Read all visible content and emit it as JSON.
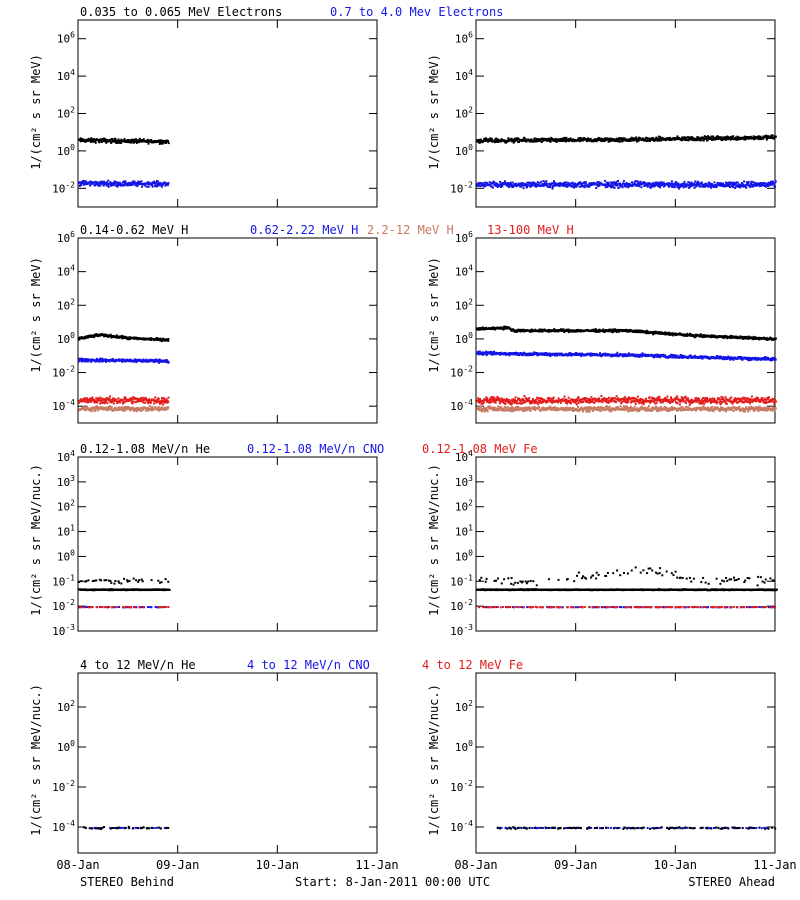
{
  "colors": {
    "black": "#000000",
    "blue": "#1515e6",
    "salmon": "#c87a63",
    "red": "#e41c1c"
  },
  "footer": {
    "left": "STEREO Behind",
    "center": "Start:  8-Jan-2011 00:00 UTC",
    "right": "STEREO Ahead"
  },
  "chart_data": [
    {
      "type": "scatter",
      "row": "electrons",
      "title_segments": [
        {
          "text": "0.035 to 0.065 MeV Electrons",
          "color": "black"
        },
        {
          "text": "0.7 to 4.0 Mev Electrons",
          "color": "blue"
        }
      ],
      "ylabel": "1/(cm² s sr MeV)",
      "yscale": "log",
      "ylim_exp": [
        -3,
        7
      ],
      "ytick_exps": [
        -2,
        0,
        2,
        4,
        6
      ],
      "xlabel_ticks": [
        "08-Jan",
        "09-Jan",
        "10-Jan",
        "11-Jan"
      ],
      "xlim_days": [
        0,
        3
      ],
      "panels": [
        {
          "spacecraft": "STEREO Behind",
          "series": [
            {
              "color": "black",
              "from": 0,
              "to": 0.9,
              "profile": [
                [
                  0,
                  0.62
                ],
                [
                  0.9,
                  0.55
                ]
              ],
              "scatter": 0.12
            },
            {
              "color": "blue",
              "from": 0,
              "to": 0.9,
              "profile": [
                [
                  0,
                  -1.68
                ],
                [
                  0.9,
                  -1.72
                ]
              ],
              "scatter": 0.15
            }
          ]
        },
        {
          "spacecraft": "STEREO Ahead",
          "series": [
            {
              "color": "black",
              "from": 0,
              "to": 3,
              "profile": [
                [
                  0,
                  0.6
                ],
                [
                  1.5,
                  0.65
                ],
                [
                  3,
                  0.78
                ]
              ],
              "scatter": 0.12
            },
            {
              "color": "blue",
              "from": 0,
              "to": 3,
              "profile": [
                [
                  0,
                  -1.75
                ],
                [
                  3,
                  -1.75
                ]
              ],
              "scatter": 0.18
            }
          ]
        }
      ]
    },
    {
      "type": "scatter",
      "row": "protons",
      "title_segments": [
        {
          "text": "0.14-0.62 MeV H",
          "color": "black"
        },
        {
          "text": "0.62-2.22 MeV H",
          "color": "blue"
        },
        {
          "text": "2.2-12 MeV H",
          "color": "salmon"
        },
        {
          "text": "13-100 MeV H",
          "color": "red"
        }
      ],
      "ylabel": "1/(cm² s sr MeV)",
      "yscale": "log",
      "ylim_exp": [
        -5,
        6
      ],
      "ytick_exps": [
        -4,
        -2,
        0,
        2,
        4,
        6
      ],
      "xlabel_ticks": [
        "08-Jan",
        "09-Jan",
        "10-Jan",
        "11-Jan"
      ],
      "xlim_days": [
        0,
        3
      ],
      "panels": [
        {
          "spacecraft": "STEREO Behind",
          "series": [
            {
              "color": "black",
              "from": 0,
              "to": 0.9,
              "profile": [
                [
                  0,
                  0.1
                ],
                [
                  0.22,
                  0.3
                ],
                [
                  0.5,
                  0.1
                ],
                [
                  0.9,
                  0.0
                ]
              ],
              "scatter": 0.08
            },
            {
              "color": "blue",
              "from": 0,
              "to": 0.9,
              "profile": [
                [
                  0,
                  -1.2
                ],
                [
                  0.9,
                  -1.25
                ]
              ],
              "scatter": 0.1
            },
            {
              "color": "red",
              "from": 0,
              "to": 0.9,
              "profile": [
                [
                  0,
                  -3.6
                ],
                [
                  0.9,
                  -3.6
                ]
              ],
              "scatter": 0.22
            },
            {
              "color": "salmon",
              "from": 0,
              "to": 0.9,
              "profile": [
                [
                  0,
                  -4.1
                ],
                [
                  0.9,
                  -4.1
                ]
              ],
              "scatter": 0.15
            }
          ]
        },
        {
          "spacecraft": "STEREO Ahead",
          "series": [
            {
              "color": "black",
              "from": 0,
              "to": 3,
              "profile": [
                [
                  0,
                  0.65
                ],
                [
                  0.3,
                  0.72
                ],
                [
                  0.38,
                  0.55
                ],
                [
                  1.5,
                  0.55
                ],
                [
                  2.2,
                  0.25
                ],
                [
                  3,
                  0.05
                ]
              ],
              "scatter": 0.08
            },
            {
              "color": "blue",
              "from": 0,
              "to": 3,
              "profile": [
                [
                  0,
                  -0.8
                ],
                [
                  1.5,
                  -0.9
                ],
                [
                  3,
                  -1.15
                ]
              ],
              "scatter": 0.1
            },
            {
              "color": "red",
              "from": 0,
              "to": 3,
              "profile": [
                [
                  0,
                  -3.6
                ],
                [
                  3,
                  -3.6
                ]
              ],
              "scatter": 0.22
            },
            {
              "color": "salmon",
              "from": 0,
              "to": 3,
              "profile": [
                [
                  0,
                  -4.1
                ],
                [
                  3,
                  -4.1
                ]
              ],
              "scatter": 0.15
            }
          ]
        }
      ]
    },
    {
      "type": "scatter",
      "row": "low-energy-ions",
      "title_segments": [
        {
          "text": "0.12-1.08 MeV/n He",
          "color": "black"
        },
        {
          "text": "0.12-1.08 MeV/n CNO",
          "color": "blue"
        },
        {
          "text": "0.12-1.08 MeV Fe",
          "color": "red"
        }
      ],
      "ylabel": "1/(cm² s sr MeV/nuc.)",
      "yscale": "log",
      "ylim_exp": [
        -3,
        4
      ],
      "ytick_exps": [
        -3,
        -2,
        -1,
        0,
        1,
        2,
        3,
        4
      ],
      "xlabel_ticks": [
        "08-Jan",
        "09-Jan",
        "10-Jan",
        "11-Jan"
      ],
      "xlim_days": [
        0,
        3
      ],
      "panels": [
        {
          "spacecraft": "STEREO Behind",
          "series": [
            {
              "color": "black",
              "from": 0,
              "to": 0.9,
              "profile": [
                [
                  0,
                  -1.3
                ],
                [
                  0.9,
                  -1.3
                ]
              ],
              "scatter": 0.02,
              "mode": "band"
            },
            {
              "color": "black",
              "from": 0,
              "to": 0.9,
              "profile": [
                [
                  0,
                  -0.95
                ],
                [
                  0.9,
                  -0.95
                ]
              ],
              "scatter": 0.1,
              "mode": "sparse"
            },
            {
              "color": "blue",
              "from": 0,
              "to": 0.9,
              "profile": [
                [
                  0,
                  -2.0
                ],
                [
                  0.9,
                  -2.0
                ]
              ],
              "scatter": 0.01,
              "mode": "sparse"
            },
            {
              "color": "red",
              "from": 0,
              "to": 0.9,
              "profile": [
                [
                  0,
                  -2.0
                ],
                [
                  0.9,
                  -2.0
                ]
              ],
              "scatter": 0.01,
              "mode": "sparse"
            }
          ]
        },
        {
          "spacecraft": "STEREO Ahead",
          "series": [
            {
              "color": "black",
              "from": 0,
              "to": 3,
              "profile": [
                [
                  0,
                  -1.3
                ],
                [
                  3,
                  -1.3
                ]
              ],
              "scatter": 0.02,
              "mode": "band"
            },
            {
              "color": "black",
              "from": 0,
              "to": 3,
              "profile": [
                [
                  0,
                  -0.9
                ],
                [
                  0.6,
                  -1.0
                ],
                [
                  1.2,
                  -0.7
                ],
                [
                  1.8,
                  -0.55
                ],
                [
                  2.2,
                  -0.9
                ],
                [
                  3,
                  -0.95
                ]
              ],
              "scatter": 0.18,
              "mode": "sparse"
            },
            {
              "color": "blue",
              "from": 0,
              "to": 3,
              "profile": [
                [
                  0,
                  -2.0
                ],
                [
                  3,
                  -2.0
                ]
              ],
              "scatter": 0.01,
              "mode": "sparse"
            },
            {
              "color": "red",
              "from": 0,
              "to": 3,
              "profile": [
                [
                  0,
                  -2.0
                ],
                [
                  3,
                  -2.0
                ]
              ],
              "scatter": 0.01,
              "mode": "sparse"
            }
          ]
        }
      ]
    },
    {
      "type": "scatter",
      "row": "high-energy-ions",
      "title_segments": [
        {
          "text": "4 to 12 MeV/n He",
          "color": "black"
        },
        {
          "text": "4 to 12 MeV/n CNO",
          "color": "blue"
        },
        {
          "text": "4 to 12 MeV Fe",
          "color": "red"
        }
      ],
      "ylabel": "1/(cm² s sr MeV/nuc.)",
      "yscale": "log",
      "ylim_exp": [
        -5.3,
        3.7
      ],
      "ytick_exps": [
        -4,
        -2,
        0,
        2
      ],
      "xlabel_ticks": [
        "08-Jan",
        "09-Jan",
        "10-Jan",
        "11-Jan"
      ],
      "xlim_days": [
        0,
        3
      ],
      "panels": [
        {
          "spacecraft": "STEREO Behind",
          "series": [
            {
              "color": "blue",
              "from": 0.05,
              "to": 0.9,
              "profile": [
                [
                  0,
                  -4.0
                ],
                [
                  0.9,
                  -4.0
                ]
              ],
              "scatter": 0.01,
              "mode": "sparse"
            },
            {
              "color": "black",
              "from": 0.05,
              "to": 0.9,
              "profile": [
                [
                  0,
                  -4.0
                ],
                [
                  0.9,
                  -4.0
                ]
              ],
              "scatter": 0.05,
              "mode": "sparse"
            }
          ]
        },
        {
          "spacecraft": "STEREO Ahead",
          "series": [
            {
              "color": "blue",
              "from": 0.2,
              "to": 3,
              "profile": [
                [
                  0,
                  -4.0
                ],
                [
                  3,
                  -4.0
                ]
              ],
              "scatter": 0.01,
              "mode": "sparse"
            },
            {
              "color": "black",
              "from": 0.2,
              "to": 3,
              "profile": [
                [
                  0,
                  -4.0
                ],
                [
                  3,
                  -4.0
                ]
              ],
              "scatter": 0.05,
              "mode": "sparse"
            }
          ]
        }
      ]
    }
  ]
}
